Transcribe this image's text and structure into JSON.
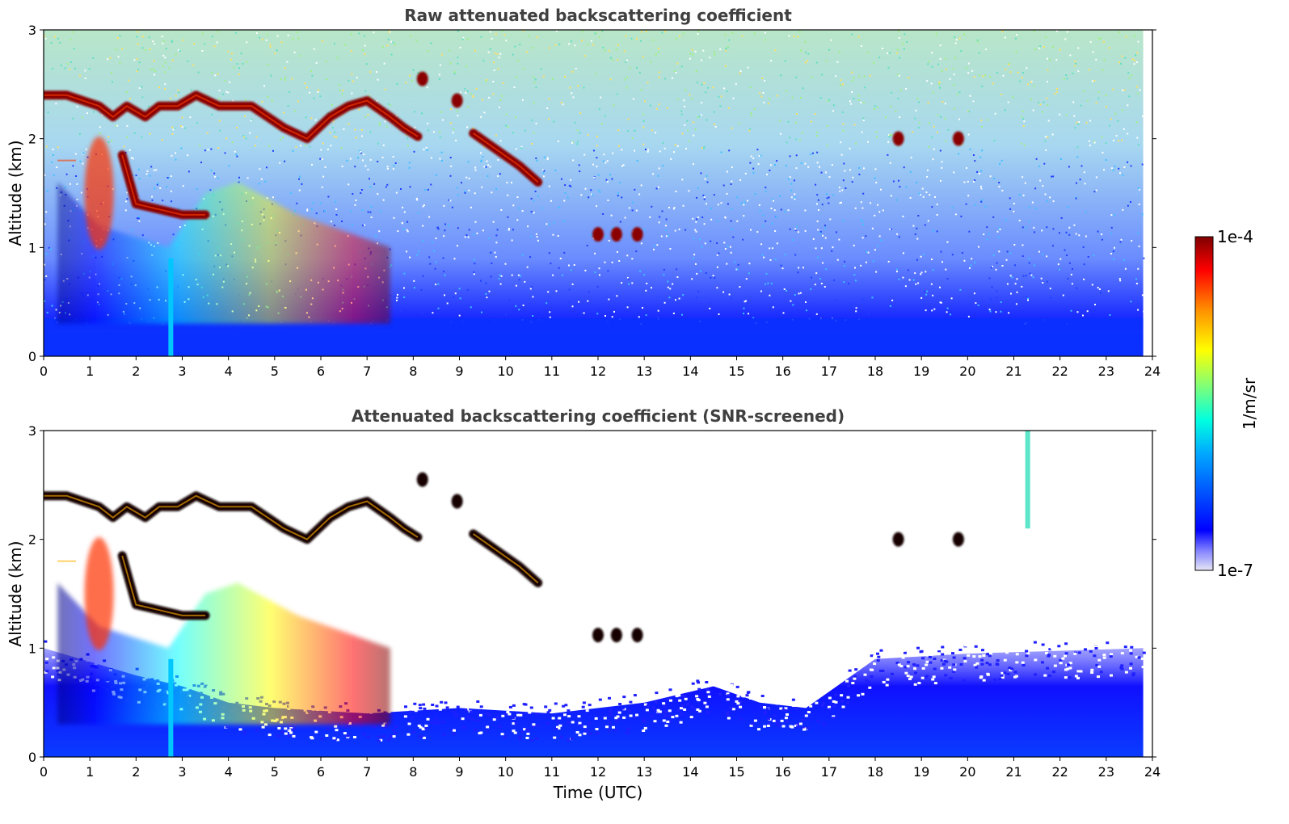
{
  "chart_data": [
    {
      "type": "heatmap",
      "title": "Raw attenuated backscattering coefficient",
      "xlabel": "",
      "ylabel": "Altitude (km)",
      "xlim": [
        0,
        24
      ],
      "ylim": [
        0,
        3
      ],
      "x_ticks": [
        "0",
        "1",
        "2",
        "3",
        "4",
        "5",
        "6",
        "7",
        "8",
        "9",
        "10",
        "11",
        "12",
        "13",
        "14",
        "15",
        "16",
        "17",
        "18",
        "19",
        "20",
        "21",
        "22",
        "23",
        "24"
      ],
      "y_ticks": [
        "0",
        "1",
        "2",
        "3"
      ],
      "screened": false,
      "data_end_time": 23.8,
      "grid": false,
      "features": [
        {
          "kind": "cloud_layer",
          "points": [
            [
              0,
              2.4
            ],
            [
              0.5,
              2.4
            ],
            [
              1.2,
              2.3
            ],
            [
              1.5,
              2.2
            ],
            [
              1.8,
              2.3
            ],
            [
              2.2,
              2.2
            ],
            [
              2.5,
              2.3
            ],
            [
              2.9,
              2.3
            ],
            [
              3.3,
              2.4
            ],
            [
              3.8,
              2.3
            ],
            [
              4.5,
              2.3
            ],
            [
              5.2,
              2.1
            ],
            [
              5.7,
              2.0
            ],
            [
              6.2,
              2.2
            ],
            [
              6.6,
              2.3
            ],
            [
              7.0,
              2.35
            ],
            [
              7.5,
              2.2
            ],
            [
              7.8,
              2.1
            ],
            [
              8.1,
              2.02
            ]
          ]
        },
        {
          "kind": "cloud_layer",
          "points": [
            [
              0.3,
              1.8
            ],
            [
              0.7,
              1.8
            ]
          ]
        },
        {
          "kind": "cloud_layer",
          "points": [
            [
              1.7,
              1.85
            ],
            [
              2.0,
              1.4
            ],
            [
              2.5,
              1.35
            ],
            [
              3.0,
              1.3
            ],
            [
              3.5,
              1.3
            ]
          ]
        },
        {
          "kind": "cloud_layer",
          "points": [
            [
              9.3,
              2.05
            ],
            [
              9.8,
              1.9
            ],
            [
              10.3,
              1.75
            ],
            [
              10.7,
              1.6
            ]
          ]
        },
        {
          "kind": "cloud_patch",
          "time": 8.2,
          "altitude": 2.55
        },
        {
          "kind": "cloud_patch",
          "time": 8.95,
          "altitude": 2.35
        },
        {
          "kind": "cloud_patch",
          "time": 12.0,
          "altitude": 1.12
        },
        {
          "kind": "cloud_patch",
          "time": 12.4,
          "altitude": 1.12
        },
        {
          "kind": "cloud_patch",
          "time": 12.85,
          "altitude": 1.12
        },
        {
          "kind": "cloud_patch",
          "time": 18.5,
          "altitude": 2.0
        },
        {
          "kind": "cloud_patch",
          "time": 19.8,
          "altitude": 2.0
        },
        {
          "kind": "aerosol_plume",
          "points": [
            [
              0.3,
              1.6
            ],
            [
              1.2,
              1.2
            ],
            [
              2.7,
              1.0
            ],
            [
              3.5,
              1.5
            ],
            [
              4.2,
              1.6
            ],
            [
              5.5,
              1.3
            ],
            [
              7.5,
              1.0
            ]
          ]
        }
      ]
    },
    {
      "type": "heatmap",
      "title": "Attenuated backscattering coefficient (SNR-screened)",
      "xlabel": "Time (UTC)",
      "ylabel": "Altitude (km)",
      "xlim": [
        0,
        24
      ],
      "ylim": [
        0,
        3
      ],
      "x_ticks": [
        "0",
        "1",
        "2",
        "3",
        "4",
        "5",
        "6",
        "7",
        "8",
        "9",
        "10",
        "11",
        "12",
        "13",
        "14",
        "15",
        "16",
        "17",
        "18",
        "19",
        "20",
        "21",
        "22",
        "23",
        "24"
      ],
      "y_ticks": [
        "0",
        "1",
        "2",
        "3"
      ],
      "screened": true,
      "data_end_time": 23.8,
      "grid": false,
      "boundary_layer_top": [
        [
          0,
          1.0
        ],
        [
          2,
          0.75
        ],
        [
          3,
          0.65
        ],
        [
          4,
          0.5
        ],
        [
          5,
          0.45
        ],
        [
          7,
          0.4
        ],
        [
          9,
          0.45
        ],
        [
          11,
          0.4
        ],
        [
          13,
          0.5
        ],
        [
          14.5,
          0.65
        ],
        [
          15.5,
          0.5
        ],
        [
          16.5,
          0.45
        ],
        [
          17,
          0.6
        ],
        [
          18,
          0.9
        ],
        [
          20,
          0.95
        ],
        [
          23.8,
          1.0
        ]
      ],
      "features": [
        {
          "kind": "cloud_layer",
          "points": [
            [
              0,
              2.4
            ],
            [
              0.5,
              2.4
            ],
            [
              1.2,
              2.3
            ],
            [
              1.5,
              2.2
            ],
            [
              1.8,
              2.3
            ],
            [
              2.2,
              2.2
            ],
            [
              2.5,
              2.3
            ],
            [
              2.9,
              2.3
            ],
            [
              3.3,
              2.4
            ],
            [
              3.8,
              2.3
            ],
            [
              4.5,
              2.3
            ],
            [
              5.2,
              2.1
            ],
            [
              5.7,
              2.0
            ],
            [
              6.2,
              2.2
            ],
            [
              6.6,
              2.3
            ],
            [
              7.0,
              2.35
            ],
            [
              7.5,
              2.2
            ],
            [
              7.8,
              2.1
            ],
            [
              8.1,
              2.02
            ]
          ]
        },
        {
          "kind": "cloud_layer",
          "points": [
            [
              0.3,
              1.8
            ],
            [
              0.7,
              1.8
            ]
          ]
        },
        {
          "kind": "cloud_layer",
          "points": [
            [
              1.7,
              1.85
            ],
            [
              2.0,
              1.4
            ],
            [
              2.5,
              1.35
            ],
            [
              3.0,
              1.3
            ],
            [
              3.5,
              1.3
            ]
          ]
        },
        {
          "kind": "cloud_layer",
          "points": [
            [
              9.3,
              2.05
            ],
            [
              9.8,
              1.9
            ],
            [
              10.3,
              1.75
            ],
            [
              10.7,
              1.6
            ]
          ]
        },
        {
          "kind": "cloud_patch",
          "time": 8.2,
          "altitude": 2.55
        },
        {
          "kind": "cloud_patch",
          "time": 8.95,
          "altitude": 2.35
        },
        {
          "kind": "cloud_patch",
          "time": 12.0,
          "altitude": 1.12
        },
        {
          "kind": "cloud_patch",
          "time": 12.4,
          "altitude": 1.12
        },
        {
          "kind": "cloud_patch",
          "time": 12.85,
          "altitude": 1.12
        },
        {
          "kind": "cloud_patch",
          "time": 18.5,
          "altitude": 2.0
        },
        {
          "kind": "cloud_patch",
          "time": 19.8,
          "altitude": 2.0
        },
        {
          "kind": "aerosol_plume",
          "points": [
            [
              0.3,
              1.6
            ],
            [
              1.2,
              1.2
            ],
            [
              2.7,
              1.0
            ],
            [
              3.5,
              1.5
            ],
            [
              4.2,
              1.6
            ],
            [
              5.5,
              1.3
            ],
            [
              7.5,
              1.0
            ]
          ]
        },
        {
          "kind": "precipitation_streak",
          "time": 21.3,
          "altitude_range": [
            2.1,
            3.0
          ]
        }
      ]
    }
  ],
  "colorbar": {
    "colormap": "jet",
    "scale": "log",
    "label": "1/m/sr",
    "min_label": "1e-7",
    "max_label": "1e-4",
    "min": 1e-07,
    "max": 0.0001
  },
  "colors": {
    "title": "#404040",
    "background": "#ffffff",
    "axes": "#000000"
  }
}
